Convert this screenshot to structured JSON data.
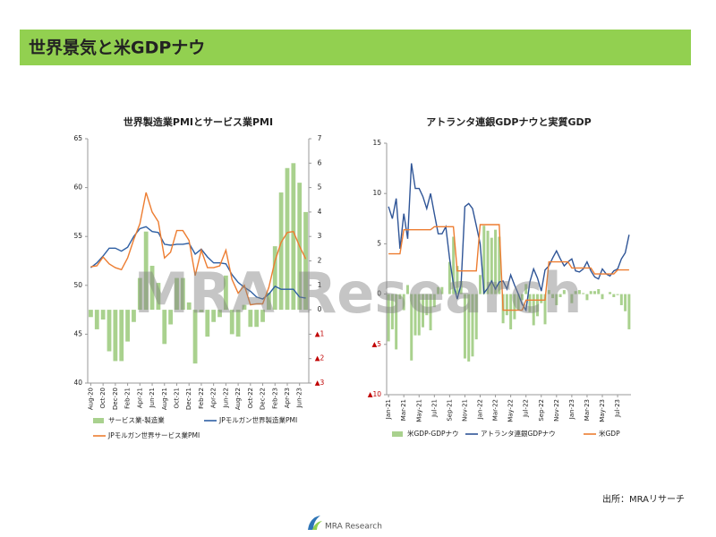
{
  "header": {
    "title": "世界景気と米GDPナウ"
  },
  "watermark": "MRA Research",
  "source": "出所：MRAリサーチ",
  "logo": "MRA Research",
  "chart_data": [
    {
      "type": "combo",
      "title": "世界製造業PMIとサービス業PMI",
      "categories": [
        "Aug-20",
        null,
        "Oct-20",
        null,
        "Dec-20",
        null,
        "Feb-21",
        null,
        "Apr-21",
        null,
        "Jun-21",
        null,
        "Aug-21",
        null,
        "Oct-21",
        null,
        "Dec-21",
        null,
        "Feb-22",
        null,
        "Apr-22",
        null,
        "Jun-22",
        null,
        "Aug-22",
        null,
        "Oct-22",
        null,
        "Dec-22",
        null,
        "Feb-23",
        null,
        "Apr-23",
        null,
        "Jun-23",
        null
      ],
      "ylim": [
        40,
        65
      ],
      "yticks": [
        40,
        45,
        50,
        55,
        60,
        65
      ],
      "y2lim": [
        -3,
        7
      ],
      "y2ticks": [
        {
          "value": -3,
          "label": "▲3"
        },
        {
          "value": -2,
          "label": "▲2"
        },
        {
          "value": -1,
          "label": "▲1"
        },
        0,
        1,
        2,
        3,
        4,
        5,
        6,
        7
      ],
      "series": [
        {
          "name": "サービス業-製造業",
          "type": "bar",
          "axis": "y2",
          "color": "#a9d18e",
          "values": [
            -0.3,
            -0.8,
            -0.4,
            -1.7,
            -2.1,
            -2.1,
            -1.3,
            -0.5,
            1.3,
            3.2,
            1.8,
            1.1,
            -1.4,
            -0.6,
            1.3,
            1.3,
            0.3,
            -2.2,
            -0.1,
            -1.1,
            -0.5,
            -0.3,
            1.4,
            -1.0,
            -1.1,
            0.2,
            -0.7,
            -0.7,
            -0.5,
            0.7,
            2.6,
            4.8,
            5.8,
            6.0,
            5.2,
            4.0
          ]
        },
        {
          "name": "JPモルガン世界製造業PMI",
          "type": "line",
          "color": "#2e5fa3",
          "values": [
            51.8,
            52.3,
            53.0,
            53.8,
            53.8,
            53.5,
            53.9,
            55.0,
            55.8,
            56.0,
            55.5,
            55.4,
            54.2,
            54.1,
            54.2,
            54.2,
            54.3,
            53.2,
            53.7,
            52.9,
            52.3,
            52.3,
            52.2,
            51.1,
            50.3,
            49.8,
            49.4,
            48.8,
            48.6,
            49.1,
            49.9,
            49.6,
            49.6,
            49.6,
            48.8,
            48.7
          ]
        },
        {
          "name": "JPモルガン世界サービス業PMI",
          "type": "line",
          "color": "#ed7d31",
          "values": [
            51.9,
            52.0,
            52.9,
            52.2,
            51.8,
            51.6,
            52.8,
            54.7,
            56.3,
            59.5,
            57.5,
            56.5,
            52.8,
            53.4,
            55.6,
            55.6,
            54.6,
            51.0,
            53.6,
            51.8,
            51.8,
            52.0,
            53.6,
            50.6,
            49.2,
            50.0,
            48.0,
            48.1,
            48.1,
            49.8,
            52.5,
            54.4,
            55.4,
            55.5,
            54.0,
            52.7
          ]
        }
      ]
    },
    {
      "type": "combo",
      "title": "アトランタ連銀GDPナウと実質GDP",
      "categories": [
        "Jan-21",
        null,
        null,
        null,
        "Mar-21",
        null,
        null,
        null,
        "May-21",
        null,
        null,
        null,
        "Jul-21",
        null,
        null,
        null,
        "Sep-21",
        null,
        null,
        null,
        "Nov-21",
        null,
        null,
        null,
        "Jan-22",
        null,
        null,
        null,
        "Mar-22",
        null,
        null,
        null,
        "May-22",
        null,
        null,
        null,
        "Jul-22",
        null,
        null,
        null,
        "Sep-22",
        null,
        null,
        null,
        "Nov-22",
        null,
        null,
        null,
        "Jan-23",
        null,
        null,
        null,
        "Mar-23",
        null,
        null,
        null,
        "May-23",
        null,
        null,
        null,
        "Jul-23",
        null,
        null,
        null
      ],
      "ylim": [
        -10,
        15
      ],
      "yticks": [
        {
          "value": -10,
          "label": "▲10"
        },
        {
          "value": -5,
          "label": "▲5"
        },
        0,
        5,
        10,
        15
      ],
      "series": [
        {
          "name": "米GDP-GDPナウ",
          "type": "bar",
          "color": "#a9d18e",
          "values": [
            -4.7,
            -3.5,
            -5.5,
            -0.5,
            -1.6,
            0.9,
            -6.6,
            -4.1,
            -4.1,
            -3.3,
            -2.1,
            -3.6,
            -1.3,
            0.7,
            0.7,
            0.0,
            3.2,
            5.7,
            2.8,
            1.3,
            -6.4,
            -6.7,
            -6.2,
            -4.5,
            1.9,
            6.8,
            6.3,
            5.6,
            6.4,
            5.7,
            -2.9,
            -2.1,
            -3.5,
            -2.5,
            -1.6,
            -0.6,
            1.0,
            -1.8,
            -3.1,
            -2.2,
            -0.9,
            -3.0,
            0.4,
            -0.4,
            -1.1,
            -0.3,
            0.4,
            0.0,
            -0.9,
            0.3,
            0.4,
            0.1,
            -0.6,
            0.3,
            0.3,
            0.5,
            -0.5,
            0.0,
            0.2,
            -0.3,
            -0.1,
            -1.1,
            -1.7,
            -3.5
          ]
        },
        {
          "name": "アトランタ連銀GDPナウ",
          "type": "line",
          "color": "#2f5597",
          "values": [
            8.7,
            7.5,
            9.5,
            4.5,
            8.0,
            5.5,
            13.0,
            10.5,
            10.5,
            9.7,
            8.5,
            10.0,
            8.0,
            6.0,
            6.0,
            6.7,
            3.5,
            1.0,
            -0.5,
            1.0,
            8.7,
            9.0,
            8.5,
            6.8,
            5.0,
            0.1,
            0.6,
            1.3,
            0.5,
            1.2,
            1.3,
            0.5,
            1.9,
            0.9,
            0.0,
            -1.0,
            -1.6,
            1.2,
            2.5,
            1.6,
            0.3,
            2.4,
            2.8,
            3.6,
            4.3,
            3.5,
            2.8,
            3.2,
            3.5,
            2.3,
            2.2,
            2.5,
            3.2,
            2.3,
            1.7,
            1.5,
            2.5,
            2.0,
            1.8,
            2.3,
            2.5,
            3.5,
            4.1,
            5.9
          ]
        },
        {
          "name": "米GDP",
          "type": "line",
          "color": "#ed7d31",
          "values": [
            4.0,
            4.0,
            4.0,
            4.0,
            6.4,
            6.4,
            6.4,
            6.4,
            6.4,
            6.4,
            6.4,
            6.4,
            6.7,
            6.7,
            6.7,
            6.7,
            6.7,
            6.7,
            2.3,
            2.3,
            2.3,
            2.3,
            2.3,
            2.3,
            6.9,
            6.9,
            6.9,
            6.9,
            6.9,
            6.9,
            -1.6,
            -1.6,
            -1.6,
            -1.6,
            -1.6,
            -1.6,
            -0.6,
            -0.6,
            -0.6,
            -0.6,
            -0.6,
            -0.6,
            3.2,
            3.2,
            3.2,
            3.2,
            3.2,
            3.2,
            2.6,
            2.6,
            2.6,
            2.6,
            2.6,
            2.6,
            2.0,
            2.0,
            2.0,
            2.0,
            2.0,
            2.0,
            2.4,
            2.4,
            2.4,
            2.4
          ]
        }
      ]
    }
  ]
}
